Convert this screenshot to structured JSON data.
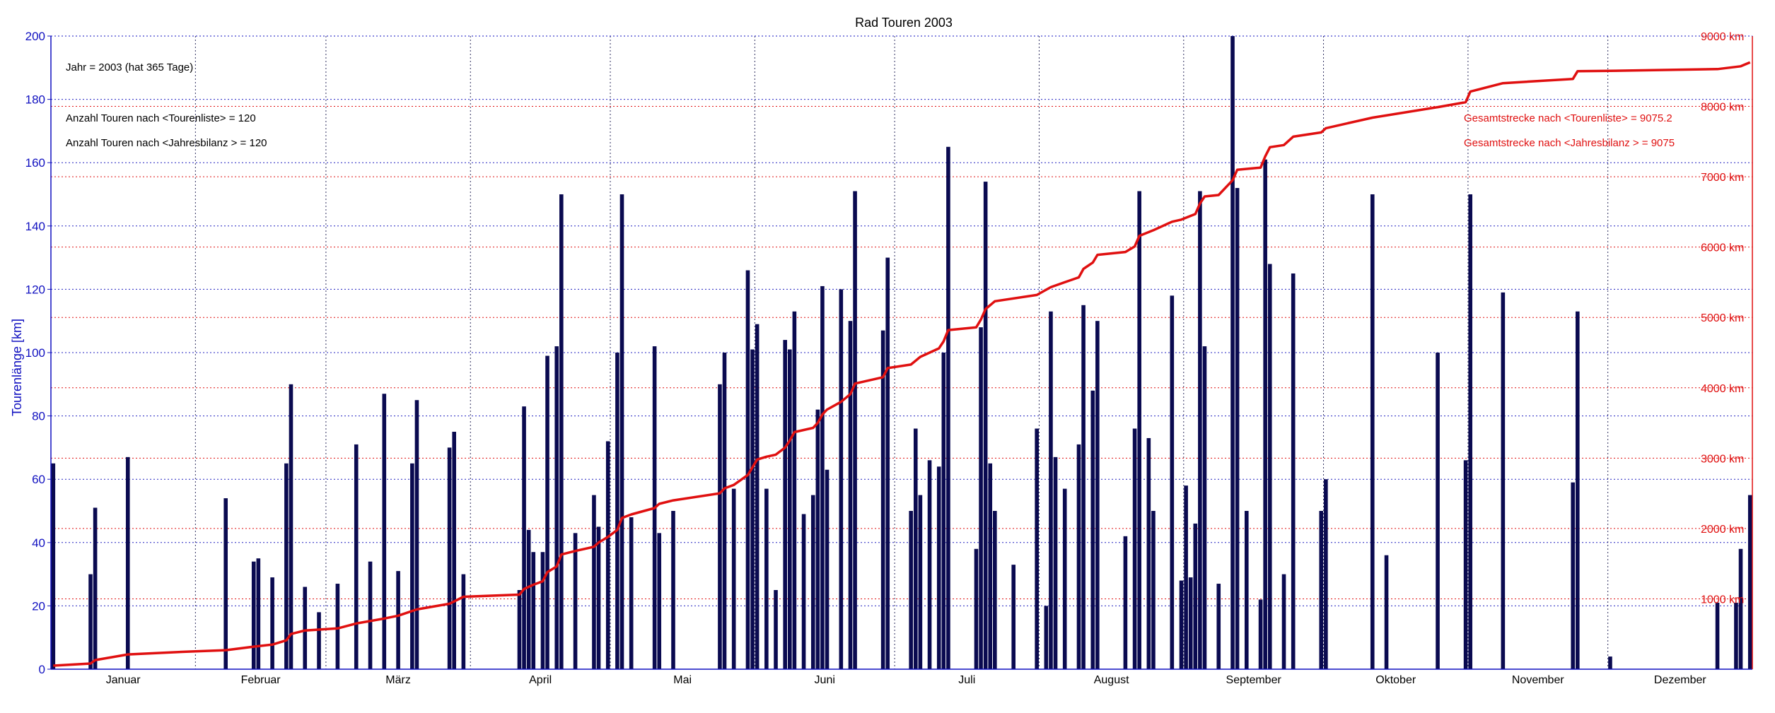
{
  "chart_data": {
    "type": "bar",
    "title": "Rad Touren 2003",
    "ylabel": "Tourenlänge [km]",
    "ylim": [
      0,
      200
    ],
    "y_ticks": [
      0,
      20,
      40,
      60,
      80,
      100,
      120,
      140,
      160,
      180,
      200
    ],
    "y2lim": [
      0,
      9000
    ],
    "y2_ticks": [
      "1000 km",
      "2000 km",
      "3000 km",
      "4000 km",
      "5000 km",
      "6000 km",
      "7000 km",
      "8000 km",
      "9000 km"
    ],
    "xlim": [
      1,
      366
    ],
    "months": [
      {
        "label": "Januar",
        "start": 1,
        "end": 32
      },
      {
        "label": "Februar",
        "start": 32,
        "end": 60
      },
      {
        "label": "März",
        "start": 60,
        "end": 91
      },
      {
        "label": "April",
        "start": 91,
        "end": 121
      },
      {
        "label": "Mai",
        "start": 121,
        "end": 152
      },
      {
        "label": "Juni",
        "start": 152,
        "end": 182
      },
      {
        "label": "Juli",
        "start": 182,
        "end": 213
      },
      {
        "label": "August",
        "start": 213,
        "end": 244
      },
      {
        "label": "September",
        "start": 244,
        "end": 274
      },
      {
        "label": "Oktober",
        "start": 274,
        "end": 305
      },
      {
        "label": "November",
        "start": 305,
        "end": 335
      },
      {
        "label": "Dezember",
        "start": 335,
        "end": 366
      }
    ],
    "grid": true,
    "annotations_left": [
      "Jahr = 2003  (hat 365 Tage)",
      "Anzahl Touren nach <Tourenliste>     = 120",
      "Anzahl Touren nach <Jahresbilanz > = 120"
    ],
    "annotations_right": [
      "Gesamtstrecke nach <Tourenliste>     = 9075.2",
      "Gesamtstrecke nach <Jahresbilanz > = 9075"
    ],
    "series": [
      {
        "type": "bar",
        "color": "#0a0a50",
        "points": [
          [
            1,
            65
          ],
          [
            9,
            30
          ],
          [
            10,
            51
          ],
          [
            17,
            67
          ],
          [
            38,
            54
          ],
          [
            44,
            34
          ],
          [
            45,
            35
          ],
          [
            48,
            29
          ],
          [
            51,
            65
          ],
          [
            52,
            90
          ],
          [
            55,
            26
          ],
          [
            58,
            18
          ],
          [
            62,
            27
          ],
          [
            66,
            71
          ],
          [
            69,
            34
          ],
          [
            72,
            87
          ],
          [
            75,
            31
          ],
          [
            78,
            65
          ],
          [
            79,
            85
          ],
          [
            86,
            70
          ],
          [
            87,
            75
          ],
          [
            89,
            30
          ],
          [
            101,
            25
          ],
          [
            102,
            83
          ],
          [
            103,
            44
          ],
          [
            104,
            37
          ],
          [
            106,
            37
          ],
          [
            107,
            99
          ],
          [
            109,
            102
          ],
          [
            110,
            150
          ],
          [
            113,
            43
          ],
          [
            117,
            55
          ],
          [
            118,
            45
          ],
          [
            120,
            72
          ],
          [
            122,
            100
          ],
          [
            123,
            150
          ],
          [
            125,
            48
          ],
          [
            130,
            102
          ],
          [
            131,
            43
          ],
          [
            134,
            50
          ],
          [
            144,
            90
          ],
          [
            145,
            100
          ],
          [
            147,
            57
          ],
          [
            150,
            126
          ],
          [
            151,
            101
          ],
          [
            152,
            109
          ],
          [
            154,
            57
          ],
          [
            156,
            25
          ],
          [
            158,
            104
          ],
          [
            159,
            101
          ],
          [
            160,
            113
          ],
          [
            162,
            49
          ],
          [
            164,
            55
          ],
          [
            165,
            82
          ],
          [
            166,
            121
          ],
          [
            167,
            63
          ],
          [
            170,
            120
          ],
          [
            172,
            110
          ],
          [
            173,
            151
          ],
          [
            179,
            107
          ],
          [
            180,
            130
          ],
          [
            185,
            50
          ],
          [
            186,
            76
          ],
          [
            187,
            55
          ],
          [
            189,
            66
          ],
          [
            191,
            64
          ],
          [
            192,
            100
          ],
          [
            193,
            165
          ],
          [
            199,
            38
          ],
          [
            200,
            108
          ],
          [
            201,
            154
          ],
          [
            202,
            65
          ],
          [
            203,
            50
          ],
          [
            207,
            33
          ],
          [
            212,
            76
          ],
          [
            214,
            20
          ],
          [
            215,
            113
          ],
          [
            216,
            67
          ],
          [
            218,
            57
          ],
          [
            221,
            71
          ],
          [
            222,
            115
          ],
          [
            224,
            88
          ],
          [
            225,
            110
          ],
          [
            231,
            42
          ],
          [
            233,
            76
          ],
          [
            234,
            151
          ],
          [
            236,
            73
          ],
          [
            237,
            50
          ],
          [
            241,
            118
          ],
          [
            243,
            28
          ],
          [
            244,
            58
          ],
          [
            245,
            29
          ],
          [
            246,
            46
          ],
          [
            247,
            151
          ],
          [
            248,
            102
          ],
          [
            251,
            27
          ],
          [
            254,
            200
          ],
          [
            255,
            152
          ],
          [
            257,
            50
          ],
          [
            260,
            22
          ],
          [
            261,
            161
          ],
          [
            262,
            128
          ],
          [
            265,
            30
          ],
          [
            267,
            125
          ],
          [
            273,
            50
          ],
          [
            274,
            60
          ],
          [
            284,
            150
          ],
          [
            287,
            36
          ],
          [
            298,
            100
          ],
          [
            304,
            66
          ],
          [
            305,
            150
          ],
          [
            312,
            119
          ],
          [
            327,
            59
          ],
          [
            328,
            113
          ],
          [
            335,
            4
          ],
          [
            358,
            21
          ],
          [
            362,
            21
          ],
          [
            363,
            38
          ],
          [
            365,
            55
          ]
        ]
      },
      {
        "type": "line",
        "color": "#e01010",
        "axis": "y2",
        "points": [
          [
            1,
            50
          ],
          [
            9,
            80
          ],
          [
            10,
            130
          ],
          [
            17,
            210
          ],
          [
            30,
            250
          ],
          [
            38,
            270
          ],
          [
            44,
            320
          ],
          [
            48,
            350
          ],
          [
            51,
            410
          ],
          [
            52,
            500
          ],
          [
            55,
            550
          ],
          [
            62,
            580
          ],
          [
            66,
            650
          ],
          [
            72,
            720
          ],
          [
            75,
            760
          ],
          [
            79,
            850
          ],
          [
            86,
            930
          ],
          [
            89,
            1030
          ],
          [
            101,
            1060
          ],
          [
            102,
            1140
          ],
          [
            104,
            1200
          ],
          [
            106,
            1250
          ],
          [
            107,
            1380
          ],
          [
            109,
            1460
          ],
          [
            110,
            1630
          ],
          [
            113,
            1680
          ],
          [
            117,
            1740
          ],
          [
            118,
            1800
          ],
          [
            120,
            1880
          ],
          [
            122,
            1980
          ],
          [
            123,
            2150
          ],
          [
            125,
            2200
          ],
          [
            130,
            2290
          ],
          [
            131,
            2350
          ],
          [
            134,
            2400
          ],
          [
            144,
            2500
          ],
          [
            145,
            2570
          ],
          [
            147,
            2620
          ],
          [
            150,
            2760
          ],
          [
            151,
            2870
          ],
          [
            152,
            2980
          ],
          [
            154,
            3020
          ],
          [
            156,
            3050
          ],
          [
            158,
            3150
          ],
          [
            159,
            3250
          ],
          [
            160,
            3370
          ],
          [
            164,
            3430
          ],
          [
            165,
            3500
          ],
          [
            166,
            3620
          ],
          [
            167,
            3690
          ],
          [
            170,
            3800
          ],
          [
            172,
            3910
          ],
          [
            173,
            4060
          ],
          [
            179,
            4150
          ],
          [
            180,
            4280
          ],
          [
            185,
            4330
          ],
          [
            187,
            4440
          ],
          [
            191,
            4560
          ],
          [
            192,
            4660
          ],
          [
            193,
            4820
          ],
          [
            199,
            4860
          ],
          [
            200,
            4970
          ],
          [
            201,
            5120
          ],
          [
            203,
            5230
          ],
          [
            212,
            5320
          ],
          [
            215,
            5430
          ],
          [
            218,
            5500
          ],
          [
            221,
            5570
          ],
          [
            222,
            5690
          ],
          [
            224,
            5780
          ],
          [
            225,
            5890
          ],
          [
            231,
            5930
          ],
          [
            233,
            6010
          ],
          [
            234,
            6160
          ],
          [
            237,
            6240
          ],
          [
            241,
            6360
          ],
          [
            243,
            6390
          ],
          [
            246,
            6470
          ],
          [
            247,
            6620
          ],
          [
            248,
            6720
          ],
          [
            251,
            6740
          ],
          [
            254,
            6950
          ],
          [
            255,
            7100
          ],
          [
            260,
            7130
          ],
          [
            261,
            7290
          ],
          [
            262,
            7420
          ],
          [
            265,
            7450
          ],
          [
            267,
            7570
          ],
          [
            273,
            7630
          ],
          [
            274,
            7690
          ],
          [
            284,
            7840
          ],
          [
            298,
            7990
          ],
          [
            304,
            8060
          ],
          [
            305,
            8210
          ],
          [
            312,
            8330
          ],
          [
            327,
            8390
          ],
          [
            328,
            8500
          ],
          [
            335,
            8505
          ],
          [
            358,
            8530
          ],
          [
            363,
            8570
          ],
          [
            365,
            8625
          ]
        ]
      }
    ]
  }
}
